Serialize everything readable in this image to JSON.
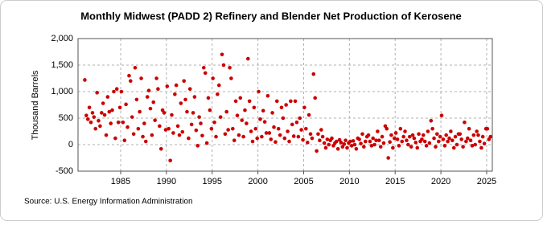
{
  "chart_data": {
    "type": "scatter",
    "title": "Monthly Midwest (PADD 2) Refinery and Blender Net Production of Kerosene",
    "y_label": "Thousand Barrels",
    "source": "Source: U.S. Energy Information Administration",
    "color": "#cc0000",
    "grid": true,
    "xlim": [
      1980.34,
      2025.62
    ],
    "ylim": [
      -500,
      2000
    ],
    "xticks": [
      1985,
      1990,
      1995,
      2000,
      2005,
      2010,
      2015,
      2020,
      2025
    ],
    "yticks": [
      -500,
      0,
      500,
      {
        "value": 1000,
        "label": "1,000"
      },
      {
        "value": 1500,
        "label": "1,500"
      },
      {
        "value": 2000,
        "label": "2,000"
      }
    ],
    "x": [
      1981.08,
      1981.25,
      1981.42,
      1981.58,
      1981.75,
      1981.92,
      1982.08,
      1982.25,
      1982.42,
      1982.58,
      1982.75,
      1982.92,
      1983.08,
      1983.25,
      1983.42,
      1983.58,
      1983.75,
      1983.92,
      1984.08,
      1984.25,
      1984.42,
      1984.58,
      1984.75,
      1984.92,
      1985.08,
      1985.25,
      1985.42,
      1985.58,
      1985.75,
      1985.92,
      1986.08,
      1986.25,
      1986.42,
      1986.58,
      1986.75,
      1986.92,
      1987.08,
      1987.25,
      1987.42,
      1987.58,
      1987.75,
      1987.92,
      1988.08,
      1988.25,
      1988.42,
      1988.58,
      1988.75,
      1988.92,
      1989.08,
      1989.25,
      1989.42,
      1989.58,
      1989.75,
      1989.92,
      1990.08,
      1990.25,
      1990.42,
      1990.58,
      1990.75,
      1990.92,
      1991.08,
      1991.25,
      1991.42,
      1991.58,
      1991.75,
      1991.92,
      1992.08,
      1992.25,
      1992.42,
      1992.58,
      1992.75,
      1992.92,
      1993.08,
      1993.25,
      1993.42,
      1993.58,
      1993.75,
      1993.92,
      1994.08,
      1994.25,
      1994.42,
      1994.58,
      1994.75,
      1994.92,
      1995.08,
      1995.25,
      1995.42,
      1995.58,
      1995.75,
      1995.92,
      1996.08,
      1996.25,
      1996.42,
      1996.58,
      1996.75,
      1996.92,
      1997.08,
      1997.25,
      1997.42,
      1997.58,
      1997.75,
      1997.92,
      1998.08,
      1998.25,
      1998.42,
      1998.58,
      1998.75,
      1998.92,
      1999.08,
      1999.25,
      1999.42,
      1999.58,
      1999.75,
      1999.92,
      2000.08,
      2000.25,
      2000.42,
      2000.58,
      2000.75,
      2000.92,
      2001.08,
      2001.25,
      2001.42,
      2001.58,
      2001.75,
      2001.92,
      2002.08,
      2002.25,
      2002.42,
      2002.58,
      2002.75,
      2002.92,
      2003.08,
      2003.25,
      2003.42,
      2003.58,
      2003.75,
      2003.92,
      2004.08,
      2004.25,
      2004.42,
      2004.58,
      2004.75,
      2004.92,
      2005.08,
      2005.25,
      2005.42,
      2005.58,
      2005.75,
      2005.92,
      2006.08,
      2006.25,
      2006.42,
      2006.58,
      2006.75,
      2006.92,
      2007.08,
      2007.25,
      2007.42,
      2007.58,
      2007.75,
      2007.92,
      2008.08,
      2008.25,
      2008.42,
      2008.58,
      2008.75,
      2008.92,
      2009.08,
      2009.25,
      2009.42,
      2009.58,
      2009.75,
      2009.92,
      2010.08,
      2010.25,
      2010.42,
      2010.58,
      2010.75,
      2010.92,
      2011.08,
      2011.25,
      2011.42,
      2011.58,
      2011.75,
      2011.92,
      2012.08,
      2012.25,
      2012.42,
      2012.58,
      2012.75,
      2012.92,
      2013.08,
      2013.25,
      2013.42,
      2013.58,
      2013.75,
      2013.92,
      2014.08,
      2014.25,
      2014.42,
      2014.58,
      2014.75,
      2014.92,
      2015.08,
      2015.25,
      2015.42,
      2015.58,
      2015.75,
      2015.92,
      2016.08,
      2016.25,
      2016.42,
      2016.58,
      2016.75,
      2016.92,
      2017.08,
      2017.25,
      2017.42,
      2017.58,
      2017.75,
      2017.92,
      2018.08,
      2018.25,
      2018.42,
      2018.58,
      2018.75,
      2018.92,
      2019.08,
      2019.25,
      2019.42,
      2019.58,
      2019.75,
      2019.92,
      2020.08,
      2020.25,
      2020.42,
      2020.58,
      2020.75,
      2020.92,
      2021.08,
      2021.25,
      2021.42,
      2021.58,
      2021.75,
      2021.92,
      2022.08,
      2022.25,
      2022.42,
      2022.58,
      2022.75,
      2022.92,
      2023.08,
      2023.25,
      2023.42,
      2023.58,
      2023.75,
      2023.92,
      2024.08,
      2024.25,
      2024.42,
      2024.58,
      2024.75,
      2024.92,
      2025.08,
      2025.25,
      2025.42
    ],
    "values": [
      1220,
      550,
      480,
      700,
      420,
      600,
      520,
      300,
      980,
      450,
      350,
      600,
      780,
      560,
      180,
      900,
      620,
      400,
      650,
      1000,
      120,
      1050,
      420,
      700,
      1000,
      420,
      80,
      760,
      330,
      1300,
      1200,
      520,
      200,
      1450,
      850,
      300,
      620,
      1250,
      150,
      400,
      60,
      900,
      1020,
      680,
      180,
      800,
      460,
      1250,
      1050,
      350,
      -80,
      650,
      600,
      280,
      1100,
      300,
      -300,
      560,
      220,
      950,
      1120,
      350,
      180,
      780,
      240,
      1200,
      850,
      620,
      120,
      1050,
      380,
      600,
      900,
      270,
      -20,
      520,
      400,
      170,
      1450,
      1350,
      30,
      880,
      650,
      300,
      1250,
      420,
      150,
      950,
      1120,
      520,
      1700,
      1500,
      200,
      620,
      280,
      1450,
      1250,
      300,
      80,
      820,
      550,
      180,
      880,
      460,
      150,
      650,
      400,
      1620,
      820,
      250,
      60,
      700,
      300,
      120,
      1000,
      480,
      150,
      640,
      430,
      220,
      920,
      220,
      100,
      600,
      330,
      50,
      820,
      300,
      180,
      700,
      500,
      120,
      750,
      250,
      60,
      820,
      380,
      160,
      820,
      420,
      150,
      500,
      280,
      90,
      700,
      300,
      40,
      560,
      200,
      120,
      1330,
      880,
      -120,
      200,
      80,
      280,
      150,
      30,
      -60,
      100,
      0,
      80,
      120,
      -20,
      30,
      60,
      -80,
      90,
      40,
      -40,
      10,
      80,
      -60,
      30,
      60,
      -20,
      70,
      0,
      -80,
      120,
      100,
      20,
      200,
      -40,
      60,
      150,
      180,
      60,
      -20,
      120,
      0,
      80,
      250,
      80,
      -40,
      150,
      30,
      350,
      300,
      -250,
      50,
      180,
      -60,
      120,
      220,
      100,
      -20,
      300,
      60,
      150,
      250,
      80,
      0,
      150,
      -40,
      180,
      120,
      40,
      -60,
      200,
      60,
      100,
      180,
      60,
      -20,
      250,
      30,
      450,
      300,
      120,
      -40,
      200,
      60,
      150,
      550,
      100,
      -20,
      180,
      60,
      120,
      250,
      80,
      -60,
      150,
      0,
      200,
      200,
      100,
      -40,
      420,
      60,
      120,
      300,
      80,
      -20,
      180,
      0,
      250,
      180,
      60,
      -60,
      150,
      20,
      300,
      300,
      100,
      150
    ]
  }
}
